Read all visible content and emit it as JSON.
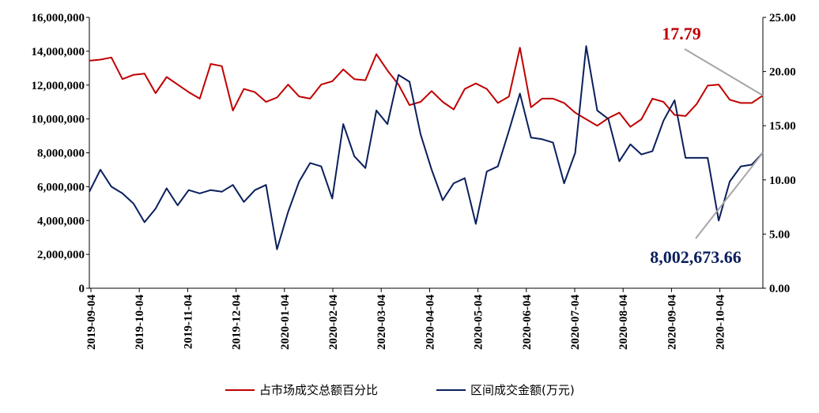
{
  "chart_data": {
    "type": "line",
    "x_tick_labels": [
      "2019-09-04",
      "2019-10-04",
      "2019-11-04",
      "2019-12-04",
      "2020-01-04",
      "2020-02-04",
      "2020-03-04",
      "2020-04-04",
      "2020-05-04",
      "2020-06-04",
      "2020-07-04",
      "2020-08-04",
      "2020-09-04",
      "2020-10-04"
    ],
    "y_left": {
      "range": [
        0,
        16000000
      ],
      "ticks": [
        "0",
        "2,000,000",
        "4,000,000",
        "6,000,000",
        "8,000,000",
        "10,000,000",
        "12,000,000",
        "14,000,000",
        "16,000,000"
      ]
    },
    "y_right": {
      "range": [
        0,
        25
      ],
      "ticks": [
        "0.00",
        "5.00",
        "10.00",
        "15.00",
        "20.00",
        "25.00"
      ]
    },
    "legend_position": "bottom",
    "series": [
      {
        "name": "占市场成交总额百分比",
        "axis": "right",
        "color": "#c00000",
        "values": [
          21.0,
          21.1,
          21.3,
          19.3,
          19.7,
          19.8,
          18.0,
          19.5,
          18.8,
          18.1,
          17.5,
          20.7,
          20.5,
          16.4,
          18.4,
          18.1,
          17.2,
          17.6,
          18.8,
          17.7,
          17.5,
          18.8,
          19.1,
          20.2,
          19.3,
          19.2,
          21.6,
          20.1,
          18.8,
          16.9,
          17.2,
          18.2,
          17.2,
          16.5,
          18.4,
          18.9,
          18.4,
          17.1,
          17.7,
          22.2,
          16.7,
          17.5,
          17.5,
          17.1,
          16.2,
          15.6,
          15.0,
          15.7,
          16.2,
          14.9,
          15.6,
          17.5,
          17.2,
          16.0,
          15.9,
          17.0,
          18.7,
          18.8,
          17.4,
          17.1,
          17.1,
          17.79
        ]
      },
      {
        "name": "区间成交金额(万元)",
        "axis": "left",
        "color": "#0a1f5c",
        "values": [
          5700000,
          7000000,
          6000000,
          5600000,
          5000000,
          3900000,
          4700000,
          5900000,
          4900000,
          5800000,
          5600000,
          5800000,
          5700000,
          6100000,
          5100000,
          5800000,
          6100000,
          2300000,
          4500000,
          6300000,
          7400000,
          7200000,
          5300000,
          9700000,
          7800000,
          7100000,
          10500000,
          9700000,
          12600000,
          12200000,
          9100000,
          7000000,
          5200000,
          6200000,
          6500000,
          3800000,
          6900000,
          7200000,
          9300000,
          11500000,
          8900000,
          8800000,
          8600000,
          6200000,
          8000000,
          14300000,
          10500000,
          10000000,
          7500000,
          8500000,
          7900000,
          8100000,
          9900000,
          11100000,
          7700000,
          7700000,
          7700000,
          4000000,
          6300000,
          7200000,
          7300000,
          8002673.66
        ]
      }
    ],
    "annotations": [
      {
        "text": "17.79",
        "series": "占市场成交总额百分比",
        "point": "last"
      },
      {
        "text": "8,002,673.66",
        "series": "区间成交金额(万元)",
        "point": "last"
      }
    ]
  }
}
